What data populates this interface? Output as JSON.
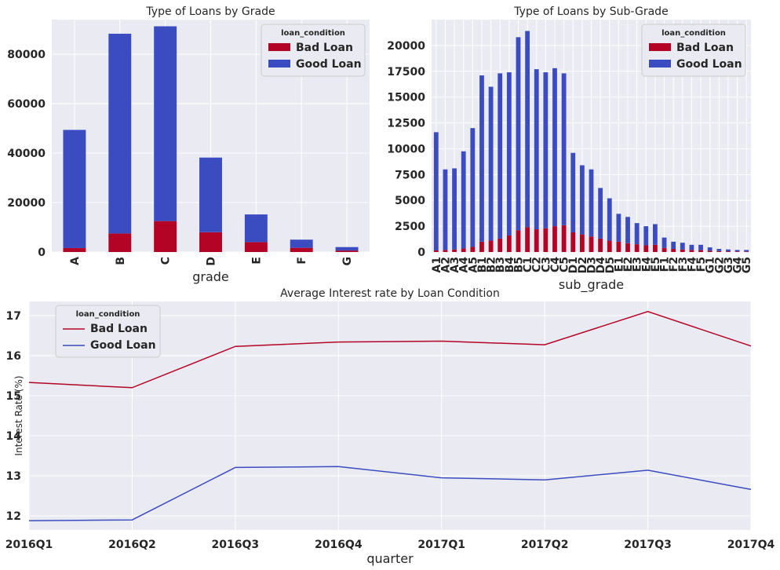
{
  "colors": {
    "bad": "#b40426",
    "good": "#3b4cc0",
    "panel": "#eaeaf2",
    "grid": "#ffffff"
  },
  "chart_data": [
    {
      "type": "bar",
      "stacked": true,
      "title": "Type of Loans by Grade",
      "xlabel": "grade",
      "ylabel": "",
      "ylim": [
        0,
        94000
      ],
      "yticks": [
        0,
        20000,
        40000,
        60000,
        80000
      ],
      "categories": [
        "A",
        "B",
        "C",
        "D",
        "E",
        "F",
        "G"
      ],
      "legend": {
        "title": "loan_condition",
        "position": "top-right"
      },
      "series": [
        {
          "name": "Bad Loan",
          "values": [
            1600,
            7500,
            12500,
            8000,
            4000,
            1700,
            600
          ]
        },
        {
          "name": "Good Loan",
          "values": [
            47800,
            80800,
            78800,
            30200,
            11200,
            3300,
            1400
          ]
        }
      ]
    },
    {
      "type": "bar",
      "stacked": true,
      "title": "Type of Loans by Sub-Grade",
      "xlabel": "sub_grade",
      "ylabel": "",
      "ylim": [
        0,
        22500
      ],
      "yticks": [
        0,
        2500,
        5000,
        7500,
        10000,
        12500,
        15000,
        17500,
        20000
      ],
      "categories": [
        "A1",
        "A2",
        "A3",
        "A4",
        "A5",
        "B1",
        "B2",
        "B3",
        "B4",
        "B5",
        "C1",
        "C2",
        "C3",
        "C4",
        "C5",
        "D1",
        "D2",
        "D3",
        "D4",
        "D5",
        "E1",
        "E2",
        "E3",
        "E4",
        "E5",
        "F1",
        "F2",
        "F3",
        "F4",
        "F5",
        "G1",
        "G2",
        "G3",
        "G4",
        "G5"
      ],
      "legend": {
        "title": "loan_condition",
        "position": "top-right"
      },
      "series": [
        {
          "name": "Bad Loan",
          "values": [
            150,
            200,
            250,
            350,
            500,
            1000,
            1100,
            1300,
            1600,
            2100,
            2400,
            2200,
            2300,
            2500,
            2600,
            1900,
            1700,
            1500,
            1300,
            1100,
            1000,
            850,
            750,
            650,
            700,
            400,
            300,
            250,
            200,
            180,
            120,
            90,
            70,
            60,
            50
          ]
        },
        {
          "name": "Good Loan",
          "values": [
            11450,
            7800,
            7850,
            9400,
            11500,
            16100,
            14900,
            16000,
            15800,
            18700,
            19000,
            15500,
            15100,
            15300,
            14700,
            7700,
            6700,
            6500,
            4900,
            4100,
            2700,
            2550,
            2050,
            1850,
            2000,
            1000,
            700,
            650,
            500,
            520,
            330,
            210,
            180,
            140,
            150
          ]
        }
      ]
    },
    {
      "type": "line",
      "title": "Average Interest rate by Loan Condition",
      "xlabel": "quarter",
      "ylabel": "Interest Rate (%)",
      "ylim": [
        11.65,
        17.35
      ],
      "yticks": [
        12,
        13,
        14,
        15,
        16,
        17
      ],
      "categories": [
        "2016Q1",
        "2016Q2",
        "2016Q3",
        "2016Q4",
        "2017Q1",
        "2017Q2",
        "2017Q3",
        "2017Q4"
      ],
      "legend": {
        "title": "loan_condition",
        "position": "top-left"
      },
      "series": [
        {
          "name": "Bad Loan",
          "values": [
            15.33,
            15.2,
            16.23,
            16.34,
            16.36,
            16.27,
            17.1,
            16.24
          ]
        },
        {
          "name": "Good Loan",
          "values": [
            11.88,
            11.9,
            13.21,
            13.23,
            12.95,
            12.9,
            13.14,
            12.66
          ]
        }
      ]
    }
  ]
}
